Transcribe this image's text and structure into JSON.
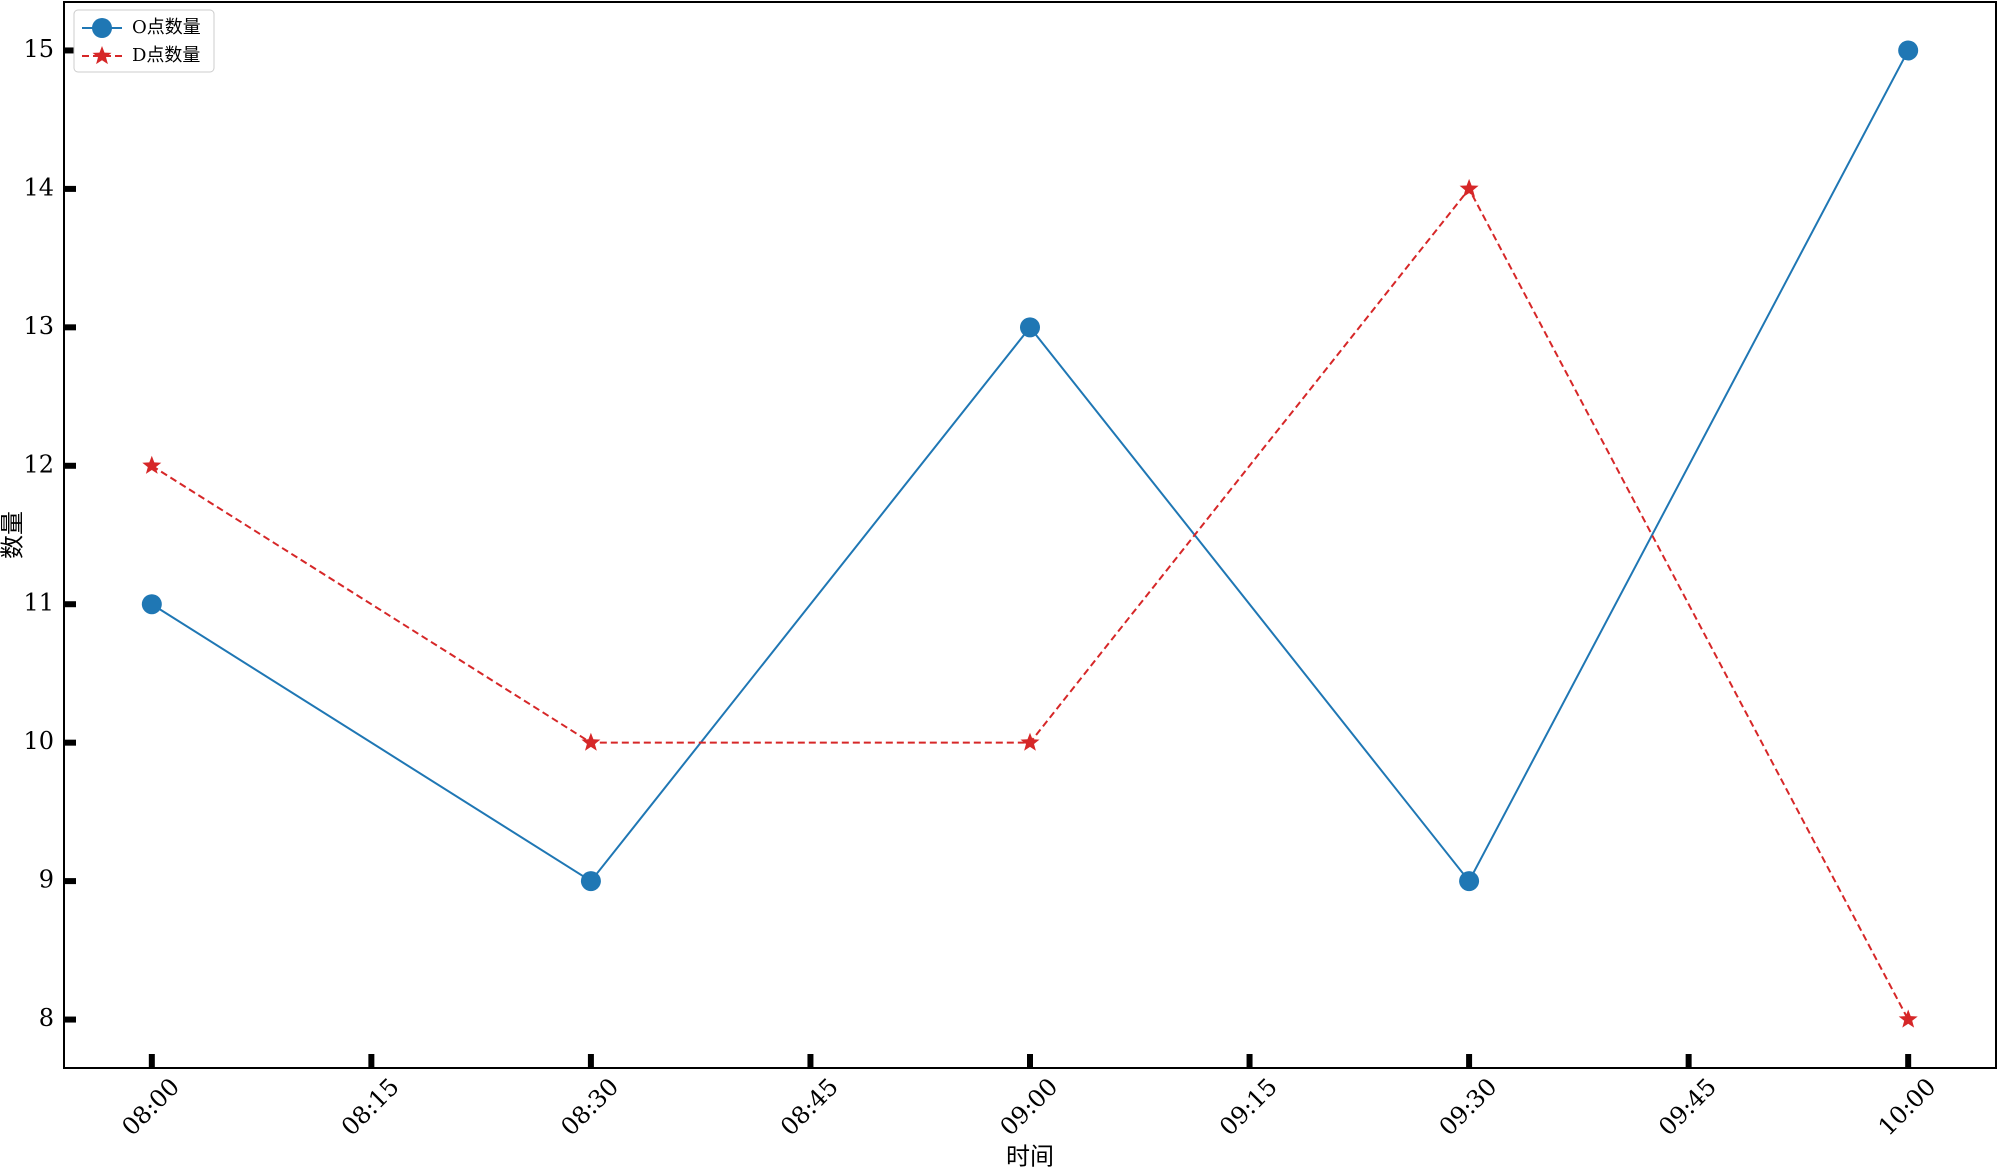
{
  "chart_data": {
    "type": "line",
    "x_label": "时间",
    "y_label": "数量",
    "x": [
      "08:00",
      "08:30",
      "09:00",
      "09:30",
      "10:00"
    ],
    "series": [
      {
        "name": "O点数量",
        "color": "#1f77b4",
        "marker": "circle",
        "linestyle": "solid",
        "values": [
          11,
          9,
          13,
          9,
          15
        ]
      },
      {
        "name": "D点数量",
        "color": "#d62728",
        "marker": "star",
        "linestyle": "dashed",
        "values": [
          12,
          10,
          10,
          14,
          8
        ]
      }
    ],
    "xlim": [
      "07:54",
      "10:06"
    ],
    "xticks": [
      "08:00",
      "08:15",
      "08:30",
      "08:45",
      "09:00",
      "09:15",
      "09:30",
      "09:45",
      "10:00"
    ],
    "ylim": [
      7.65,
      15.35
    ],
    "yticks": [
      8,
      9,
      10,
      11,
      12,
      13,
      14,
      15
    ],
    "legend": "upper left",
    "grid": false
  }
}
